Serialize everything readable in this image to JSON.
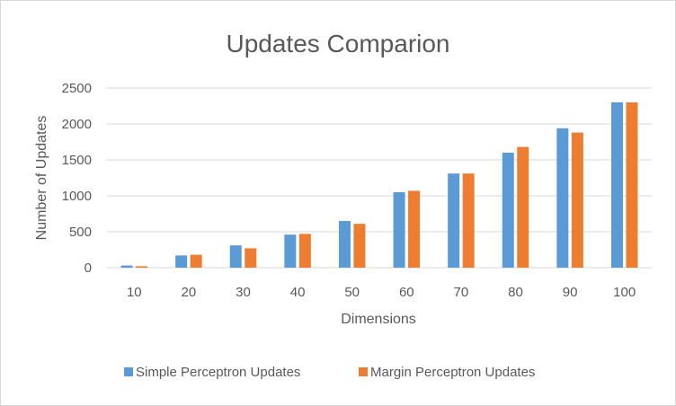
{
  "chart_data": {
    "type": "bar",
    "title": "Updates Comparion",
    "xlabel": "Dimensions",
    "ylabel": "Number of Updates",
    "categories": [
      "10",
      "20",
      "30",
      "40",
      "50",
      "60",
      "70",
      "80",
      "90",
      "100"
    ],
    "series": [
      {
        "name": "Simple Perceptron Updates",
        "color": "#5b9bd5",
        "values": [
          30,
          170,
          310,
          460,
          650,
          1050,
          1310,
          1600,
          1940,
          2300
        ]
      },
      {
        "name": "Margin Perceptron Updates",
        "color": "#ed7d31",
        "values": [
          20,
          180,
          270,
          470,
          610,
          1070,
          1310,
          1680,
          1880,
          2300
        ]
      }
    ],
    "ylim": [
      0,
      2500
    ],
    "yticks": [
      "0",
      "500",
      "1000",
      "1500",
      "2000",
      "2500"
    ],
    "grid": true,
    "legend_position": "bottom"
  }
}
